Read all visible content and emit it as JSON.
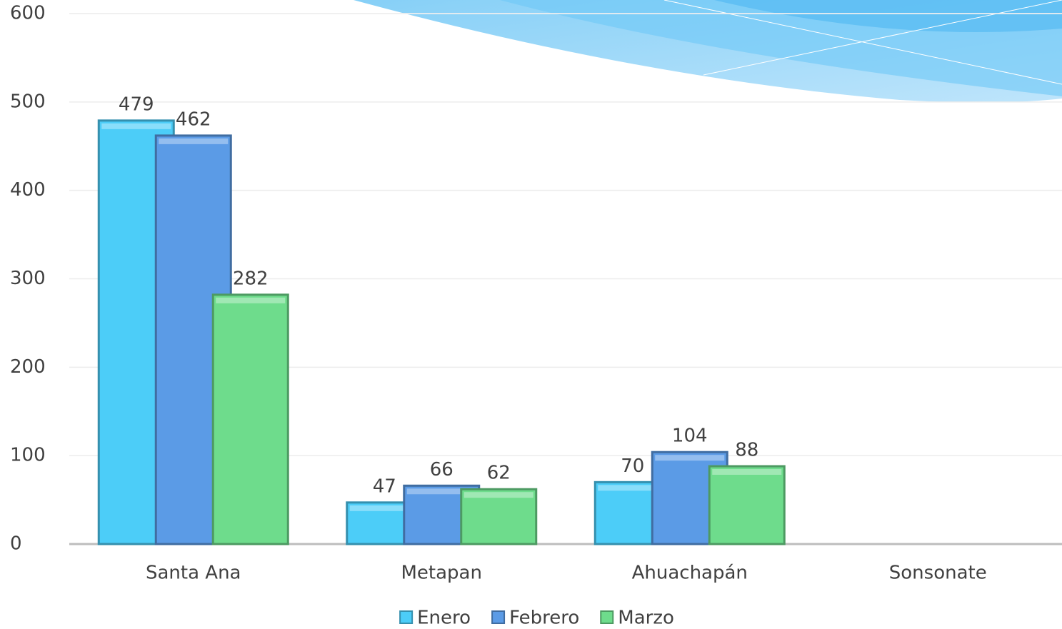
{
  "chart_data": {
    "type": "bar",
    "categories": [
      "Santa Ana",
      "Metapan",
      "Ahuachapán",
      "Sonsonate"
    ],
    "series": [
      {
        "name": "Enero",
        "color": "#4ccdf8",
        "values": [
          479,
          47,
          70,
          null
        ]
      },
      {
        "name": "Febrero",
        "color": "#5b9be6",
        "values": [
          462,
          66,
          104,
          null
        ]
      },
      {
        "name": "Marzo",
        "color": "#6edc8c",
        "values": [
          282,
          62,
          88,
          null
        ]
      }
    ],
    "ylim": [
      0,
      600
    ],
    "yticks": [
      0,
      100,
      200,
      300,
      400,
      500,
      600
    ],
    "grid": true,
    "legend": "bottom"
  }
}
